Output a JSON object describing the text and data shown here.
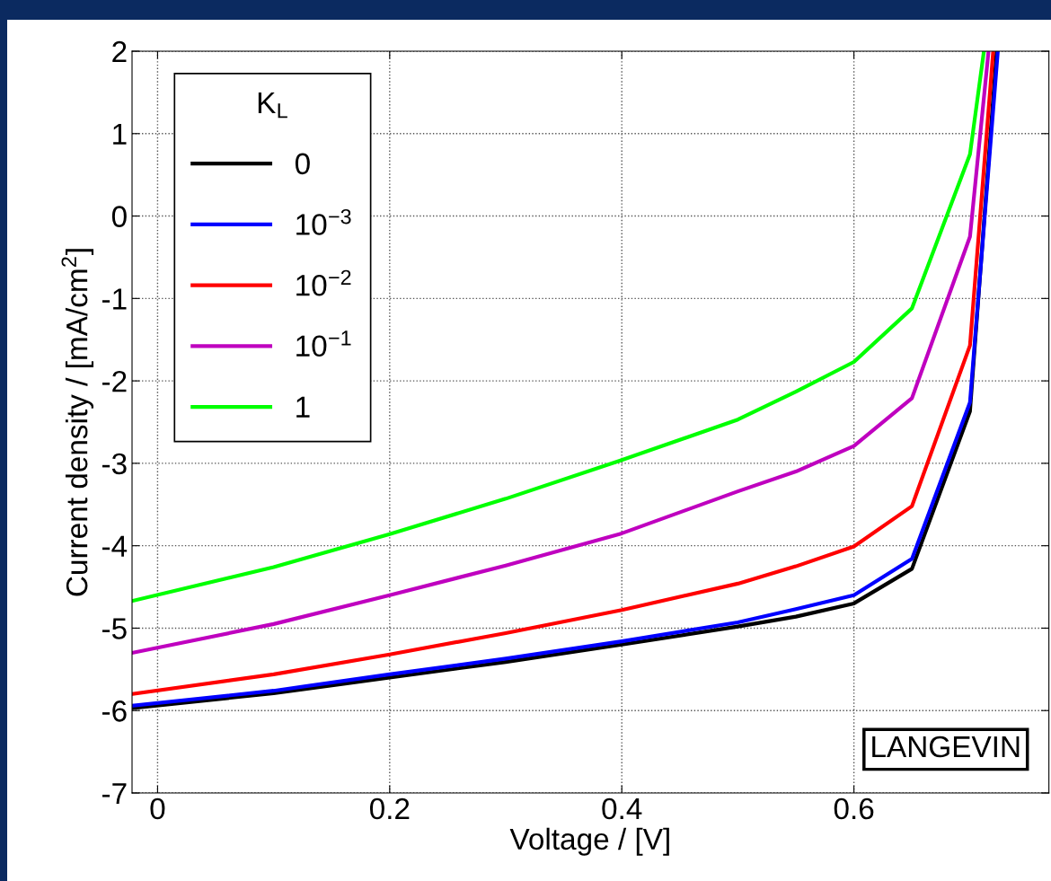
{
  "chart_data": {
    "type": "line",
    "xlabel": "Voltage / [V]",
    "ylabel": "Current density / [mA/cm$^{2}$]",
    "legend_title": "K$_{L}$",
    "series": [
      {
        "name": "0",
        "color": "#000000",
        "x": [
          -0.022,
          0.1,
          0.2,
          0.3,
          0.4,
          0.5,
          0.55,
          0.6,
          0.65,
          0.7,
          0.723
        ],
        "values": [
          -5.97,
          -5.79,
          -5.6,
          -5.41,
          -5.2,
          -4.98,
          -4.86,
          -4.7,
          -4.28,
          -2.37,
          2
        ]
      },
      {
        "name": "10$^{−3}$",
        "color": "#0000ff",
        "x": [
          -0.022,
          0.1,
          0.2,
          0.3,
          0.4,
          0.5,
          0.55,
          0.6,
          0.65,
          0.7,
          0.724
        ],
        "values": [
          -5.94,
          -5.76,
          -5.56,
          -5.37,
          -5.16,
          -4.93,
          -4.77,
          -4.6,
          -4.16,
          -2.26,
          2
        ]
      },
      {
        "name": "10$^{−2}$",
        "color": "#ff0000",
        "x": [
          -0.022,
          0.1,
          0.2,
          0.3,
          0.4,
          0.5,
          0.55,
          0.6,
          0.65,
          0.7,
          0.72
        ],
        "values": [
          -5.8,
          -5.56,
          -5.32,
          -5.06,
          -4.78,
          -4.46,
          -4.25,
          -4.01,
          -3.52,
          -1.57,
          2
        ]
      },
      {
        "name": "10$^{−1}$",
        "color": "#bf00bf",
        "x": [
          -0.022,
          0.1,
          0.2,
          0.3,
          0.4,
          0.5,
          0.55,
          0.6,
          0.65,
          0.7,
          0.716
        ],
        "values": [
          -5.3,
          -4.95,
          -4.6,
          -4.24,
          -3.85,
          -3.34,
          -3.1,
          -2.79,
          -2.21,
          -0.25,
          2
        ]
      },
      {
        "name": "1",
        "color": "#00ff00",
        "x": [
          -0.022,
          0.1,
          0.2,
          0.3,
          0.4,
          0.5,
          0.55,
          0.6,
          0.65,
          0.7,
          0.712
        ],
        "values": [
          -4.67,
          -4.26,
          -3.86,
          -3.43,
          -2.96,
          -2.47,
          -2.13,
          -1.77,
          -1.12,
          0.75,
          2
        ]
      }
    ],
    "xlim": [
      -0.022,
      0.768
    ],
    "xticks": [
      {
        "value": 0,
        "label": "0"
      },
      0.2,
      0.4,
      0.6
    ],
    "ylim": [
      -7,
      2
    ],
    "yticks": [
      -7,
      -6,
      -5,
      -4,
      -3,
      -2,
      -1,
      0,
      1,
      2
    ],
    "annotations": [
      "LANGEVIN"
    ],
    "grid": true,
    "legend": "top left",
    "line_style": "solid",
    "marker": "none"
  }
}
